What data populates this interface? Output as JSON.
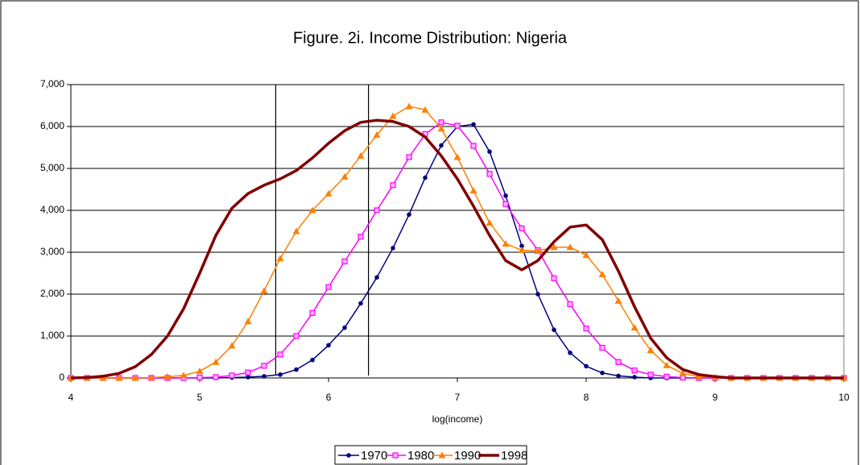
{
  "chart_data": {
    "type": "line",
    "title": "Figure. 2i. Income Distribution: Nigeria",
    "x_label": "log(income)",
    "x": [
      4,
      4.125,
      4.25,
      4.375,
      4.5,
      4.625,
      4.75,
      4.875,
      5,
      5.125,
      5.25,
      5.375,
      5.5,
      5.625,
      5.75,
      5.875,
      6,
      6.125,
      6.25,
      6.375,
      6.5,
      6.625,
      6.75,
      6.875,
      7,
      7.125,
      7.25,
      7.375,
      7.5,
      7.625,
      7.75,
      7.875,
      8,
      8.125,
      8.25,
      8.375,
      8.5,
      8.625,
      8.75,
      8.875,
      9,
      9.125,
      9.25,
      9.375,
      9.5,
      9.625,
      9.75,
      9.875,
      10
    ],
    "series": [
      {
        "name": "1970",
        "color": "#000080",
        "marker": "circle",
        "width": 1.5,
        "values": [
          0,
          0,
          0,
          0,
          0,
          0,
          0,
          0,
          0,
          0,
          10,
          20,
          40,
          80,
          200,
          430,
          780,
          1200,
          1780,
          2400,
          3100,
          3900,
          4780,
          5550,
          6000,
          6050,
          5400,
          4350,
          3150,
          2000,
          1150,
          600,
          280,
          120,
          50,
          20,
          0,
          0,
          0,
          0,
          0,
          0,
          0,
          0,
          0,
          0,
          0,
          0,
          0
        ]
      },
      {
        "name": "1980",
        "color": "#ff00ff",
        "marker": "square",
        "width": 1.5,
        "values": [
          0,
          0,
          0,
          0,
          0,
          0,
          0,
          0,
          10,
          20,
          60,
          130,
          290,
          560,
          1000,
          1550,
          2170,
          2780,
          3370,
          4000,
          4600,
          5270,
          5820,
          6100,
          6020,
          5540,
          4870,
          4150,
          3570,
          3050,
          2380,
          1760,
          1180,
          720,
          380,
          180,
          80,
          30,
          10,
          0,
          0,
          0,
          0,
          0,
          0,
          0,
          0,
          0,
          0
        ]
      },
      {
        "name": "1990",
        "color": "#ff7f00",
        "marker": "triangle",
        "width": 1.5,
        "values": [
          0,
          0,
          0,
          0,
          0,
          10,
          30,
          60,
          160,
          380,
          770,
          1350,
          2080,
          2850,
          3500,
          4000,
          4400,
          4800,
          5300,
          5800,
          6250,
          6480,
          6400,
          5950,
          5270,
          4470,
          3700,
          3200,
          3050,
          3030,
          3120,
          3120,
          2930,
          2470,
          1840,
          1200,
          660,
          300,
          110,
          30,
          10,
          0,
          0,
          0,
          0,
          0,
          0,
          0,
          0
        ]
      },
      {
        "name": "1998",
        "color": "#800000",
        "marker": "none",
        "width": 3.5,
        "values": [
          0,
          10,
          40,
          110,
          270,
          560,
          1000,
          1650,
          2500,
          3400,
          4050,
          4400,
          4600,
          4750,
          4950,
          5250,
          5600,
          5900,
          6100,
          6150,
          6120,
          6000,
          5750,
          5300,
          4750,
          4100,
          3400,
          2800,
          2580,
          2800,
          3250,
          3600,
          3650,
          3300,
          2550,
          1700,
          950,
          480,
          200,
          80,
          30,
          0,
          0,
          0,
          0,
          0,
          0,
          0,
          0
        ]
      }
    ],
    "vlines": [
      5.59,
      6.31
    ],
    "xlim": [
      4,
      10
    ],
    "xticks": [
      4,
      5,
      6,
      7,
      8,
      9,
      10
    ],
    "ylim": [
      0,
      7000
    ],
    "yticks": [
      0,
      {
        "value": 1000,
        "label": "1,000"
      },
      {
        "value": 2000,
        "label": "2,000"
      },
      {
        "value": 3000,
        "label": "3,000"
      },
      {
        "value": 4000,
        "label": "4,000"
      },
      {
        "value": 5000,
        "label": "5,000"
      },
      {
        "value": 6000,
        "label": "6,000"
      },
      {
        "value": 7000,
        "label": "7,000"
      }
    ],
    "grid": true,
    "legend": "bottom"
  }
}
